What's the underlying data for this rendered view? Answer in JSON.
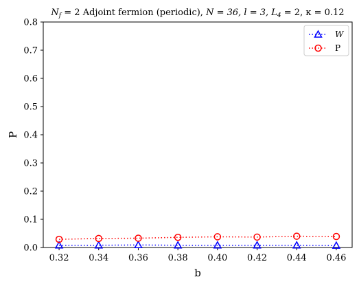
{
  "chart_data": {
    "type": "line",
    "title_parts": {
      "nf": "N",
      "nf_sub": "f",
      "nf_val": " = 2 ",
      "main": "Adjoint fermion (periodic), ",
      "params": "N = 36, l = 3,  L",
      "l4_sub": "4",
      "l4_val": " = 2,  κ = 0.12"
    },
    "xlabel": "b",
    "ylabel": "P",
    "xlim": [
      0.312,
      0.468
    ],
    "ylim": [
      0.0,
      0.8
    ],
    "x_ticks": [
      "0.32",
      "0.34",
      "0.36",
      "0.38",
      "0.40",
      "0.42",
      "0.44",
      "0.46"
    ],
    "x_tick_values": [
      0.32,
      0.34,
      0.36,
      0.38,
      0.4,
      0.42,
      0.44,
      0.46
    ],
    "y_ticks": [
      "0.0",
      "0.1",
      "0.2",
      "0.3",
      "0.4",
      "0.5",
      "0.6",
      "0.7",
      "0.8"
    ],
    "y_tick_values": [
      0.0,
      0.1,
      0.2,
      0.3,
      0.4,
      0.5,
      0.6,
      0.7,
      0.8
    ],
    "legend_position": "top-right",
    "grid": false,
    "series": [
      {
        "name": "W",
        "color": "#0000ff",
        "marker": "triangle",
        "linestyle": "dotted",
        "x": [
          0.32,
          0.34,
          0.36,
          0.38,
          0.4,
          0.42,
          0.44,
          0.46
        ],
        "y": [
          0.008,
          0.008,
          0.009,
          0.008,
          0.008,
          0.008,
          0.008,
          0.007
        ]
      },
      {
        "name": "P",
        "color": "#ff0000",
        "marker": "circle",
        "linestyle": "dotted",
        "x": [
          0.32,
          0.34,
          0.36,
          0.38,
          0.4,
          0.42,
          0.44,
          0.46
        ],
        "y": [
          0.029,
          0.032,
          0.033,
          0.036,
          0.038,
          0.037,
          0.04,
          0.039
        ]
      }
    ]
  }
}
